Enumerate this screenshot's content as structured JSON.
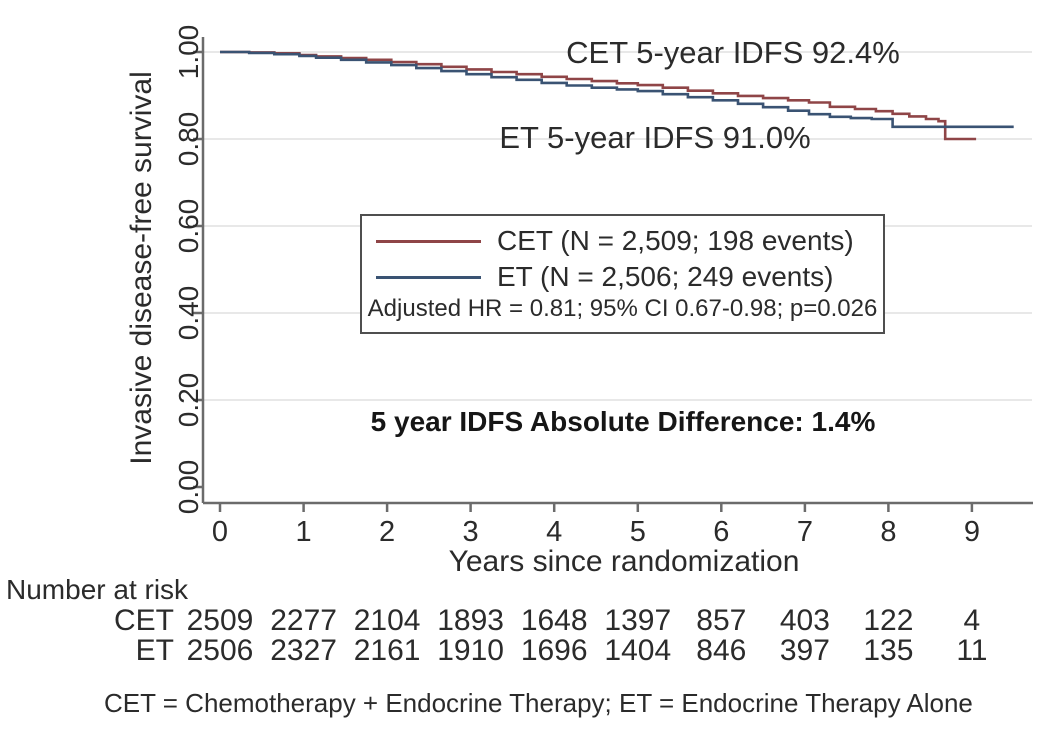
{
  "chart_data": {
    "type": "line",
    "subtype": "kaplan-meier-step",
    "xlabel": "Years since randomization",
    "ylabel": "Invasive disease-free survival",
    "xlim": [
      0,
      9.7
    ],
    "ylim": [
      0,
      1.0
    ],
    "x_ticks": [
      0,
      1,
      2,
      3,
      4,
      5,
      6,
      7,
      8,
      9
    ],
    "y_tick_labels": [
      "1.00",
      "0.80",
      "0.60",
      "0.40",
      "0.20",
      "0.00"
    ],
    "y_tick_values": [
      1.0,
      0.8,
      0.6,
      0.4,
      0.2,
      0.0
    ],
    "grid": "horizontal",
    "grid_color": "#e8e8e8",
    "axis_color": "#6b6b6b",
    "series": [
      {
        "name": "CET",
        "color": "#8f4547",
        "label": "CET (N = 2,509; 198 events)",
        "five_year_idfs": "92.4%",
        "points": [
          [
            0,
            1.0
          ],
          [
            0.35,
            0.999
          ],
          [
            0.65,
            0.997
          ],
          [
            0.95,
            0.993
          ],
          [
            1.15,
            0.99
          ],
          [
            1.45,
            0.986
          ],
          [
            1.75,
            0.982
          ],
          [
            2.05,
            0.977
          ],
          [
            2.35,
            0.972
          ],
          [
            2.65,
            0.966
          ],
          [
            2.95,
            0.96
          ],
          [
            3.25,
            0.954
          ],
          [
            3.55,
            0.949
          ],
          [
            3.85,
            0.943
          ],
          [
            4.15,
            0.938
          ],
          [
            4.45,
            0.933
          ],
          [
            4.75,
            0.928
          ],
          [
            5.0,
            0.924
          ],
          [
            5.3,
            0.918
          ],
          [
            5.6,
            0.911
          ],
          [
            5.9,
            0.905
          ],
          [
            6.2,
            0.899
          ],
          [
            6.5,
            0.894
          ],
          [
            6.8,
            0.889
          ],
          [
            7.05,
            0.884
          ],
          [
            7.3,
            0.874
          ],
          [
            7.6,
            0.869
          ],
          [
            7.85,
            0.864
          ],
          [
            8.05,
            0.858
          ],
          [
            8.25,
            0.852
          ],
          [
            8.45,
            0.846
          ],
          [
            8.6,
            0.841
          ],
          [
            8.68,
            0.8
          ],
          [
            9.05,
            0.8
          ]
        ]
      },
      {
        "name": "ET",
        "color": "#3a5373",
        "label": "ET (N = 2,506; 249 events)",
        "five_year_idfs": "91.0%",
        "points": [
          [
            0,
            1.0
          ],
          [
            0.35,
            0.998
          ],
          [
            0.65,
            0.995
          ],
          [
            0.95,
            0.991
          ],
          [
            1.15,
            0.987
          ],
          [
            1.45,
            0.982
          ],
          [
            1.75,
            0.976
          ],
          [
            2.05,
            0.97
          ],
          [
            2.35,
            0.963
          ],
          [
            2.65,
            0.956
          ],
          [
            2.95,
            0.949
          ],
          [
            3.25,
            0.942
          ],
          [
            3.55,
            0.936
          ],
          [
            3.85,
            0.929
          ],
          [
            4.15,
            0.923
          ],
          [
            4.45,
            0.918
          ],
          [
            4.75,
            0.914
          ],
          [
            5.0,
            0.91
          ],
          [
            5.3,
            0.903
          ],
          [
            5.6,
            0.896
          ],
          [
            5.9,
            0.889
          ],
          [
            6.2,
            0.881
          ],
          [
            6.5,
            0.873
          ],
          [
            6.8,
            0.865
          ],
          [
            7.05,
            0.857
          ],
          [
            7.3,
            0.851
          ],
          [
            7.55,
            0.848
          ],
          [
            7.8,
            0.846
          ],
          [
            8.05,
            0.828
          ],
          [
            9.5,
            0.828
          ]
        ]
      }
    ],
    "annotations": {
      "cet": "CET 5-year IDFS 92.4%",
      "et": "ET 5-year IDFS 91.0%",
      "hr": "Adjusted HR = 0.81; 95% CI 0.67-0.98; p=0.026",
      "difference": "5 year IDFS Absolute Difference: 1.4%"
    },
    "risk_table": {
      "heading": "Number at risk",
      "rows": [
        {
          "label": "CET",
          "values": [
            2509,
            2277,
            2104,
            1893,
            1648,
            1397,
            857,
            403,
            122,
            4
          ]
        },
        {
          "label": "ET",
          "values": [
            2506,
            2327,
            2161,
            1910,
            1696,
            1404,
            846,
            397,
            135,
            11
          ]
        }
      ]
    },
    "caption": "CET = Chemotherapy + Endocrine Therapy; ET = Endocrine Therapy Alone"
  }
}
